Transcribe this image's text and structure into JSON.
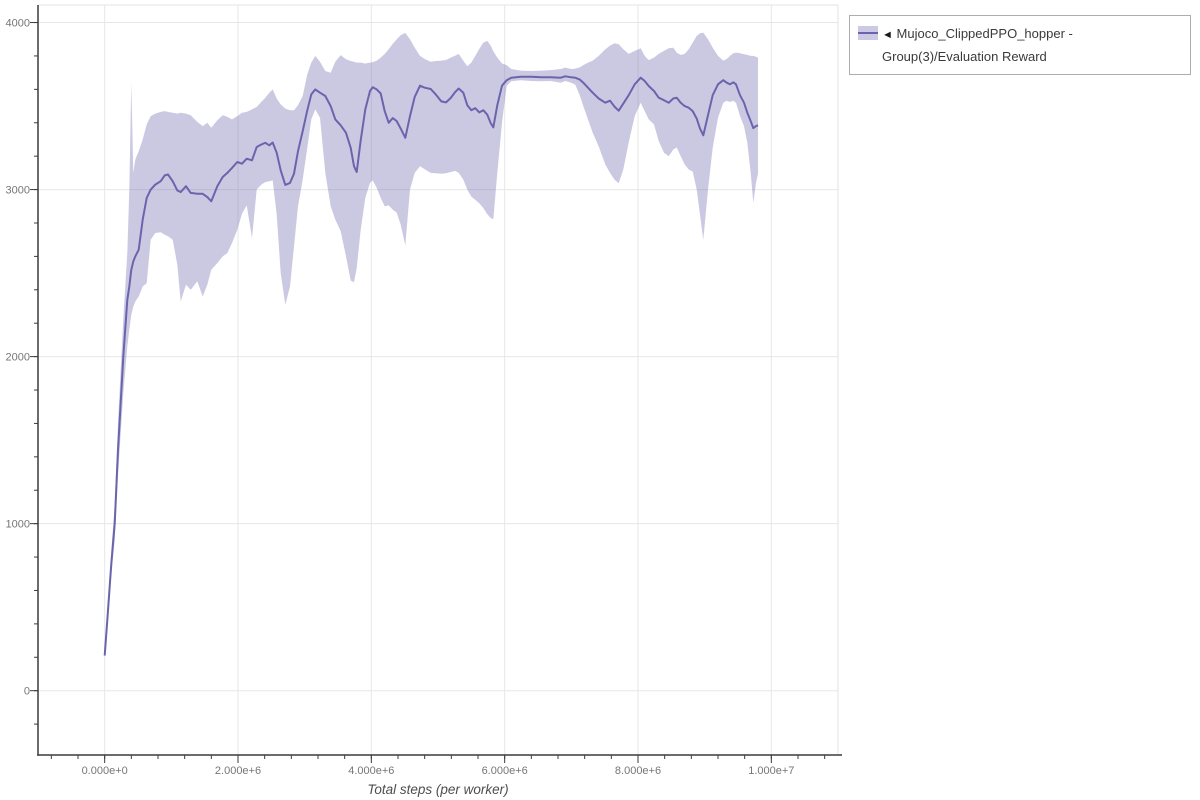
{
  "legend": {
    "arrow": "◄",
    "label": "Mujoco_ClippedPPO_hopper - Group(3)/Evaluation Reward"
  },
  "colors": {
    "line": "#6a64ad",
    "band_fill": "#6a64ad",
    "band_opacity": 0.35,
    "grid": "#e7e7e7",
    "plot_border": "#e3e3e3",
    "axis": "#3b3b3b",
    "tick_label": "#767676",
    "axis_title": "#4d4d4d",
    "legend_border": "#adadad"
  },
  "chart_data": {
    "type": "line",
    "title": "",
    "xlabel": "Total steps (per worker)",
    "ylabel": "",
    "grid": true,
    "legend_position": "top-right-outside",
    "xlim": [
      -1000000,
      11000000
    ],
    "ylim": [
      -385,
      4105
    ],
    "x_ticks": [
      0,
      2000000,
      4000000,
      6000000,
      8000000,
      10000000
    ],
    "x_tick_labels": [
      "0.000e+0",
      "2.000e+6",
      "4.000e+6",
      "6.000e+6",
      "8.000e+6",
      "1.000e+7"
    ],
    "x_minor_step": 400000,
    "y_ticks": [
      0,
      1000,
      2000,
      3000,
      4000
    ],
    "y_tick_labels": [
      "0",
      "1000",
      "2000",
      "3000",
      "4000"
    ],
    "y_minor_step": 200,
    "series": [
      {
        "name": "Mujoco_ClippedPPO_hopper - Group(3)/Evaluation Reward",
        "x": [
          0,
          50000,
          100000,
          150000,
          200000,
          280000,
          340000,
          370000,
          400000,
          430000,
          460000,
          510000,
          570000,
          630000,
          690000,
          760000,
          840000,
          900000,
          950000,
          1020000,
          1090000,
          1140000,
          1220000,
          1290000,
          1390000,
          1470000,
          1540000,
          1600000,
          1690000,
          1770000,
          1840000,
          1910000,
          1990000,
          2060000,
          2130000,
          2210000,
          2280000,
          2350000,
          2410000,
          2470000,
          2520000,
          2580000,
          2640000,
          2710000,
          2780000,
          2840000,
          2900000,
          2970000,
          3040000,
          3100000,
          3160000,
          3230000,
          3310000,
          3390000,
          3460000,
          3540000,
          3620000,
          3690000,
          3740000,
          3780000,
          3840000,
          3910000,
          3980000,
          4020000,
          4080000,
          4140000,
          4200000,
          4260000,
          4320000,
          4380000,
          4440000,
          4510000,
          4580000,
          4650000,
          4730000,
          4800000,
          4890000,
          4970000,
          5050000,
          5120000,
          5190000,
          5260000,
          5310000,
          5380000,
          5440000,
          5500000,
          5560000,
          5620000,
          5680000,
          5740000,
          5790000,
          5830000,
          5890000,
          5960000,
          6030000,
          6100000,
          6240000,
          6400000,
          6550000,
          6690000,
          6840000,
          6910000,
          7000000,
          7060000,
          7130000,
          7180000,
          7250000,
          7320000,
          7410000,
          7510000,
          7580000,
          7650000,
          7710000,
          7780000,
          7860000,
          7950000,
          8040000,
          8100000,
          8160000,
          8240000,
          8310000,
          8390000,
          8460000,
          8530000,
          8580000,
          8640000,
          8700000,
          8760000,
          8820000,
          8880000,
          8930000,
          8980000,
          9050000,
          9120000,
          9200000,
          9280000,
          9330000,
          9380000,
          9430000,
          9470000,
          9530000,
          9590000,
          9640000,
          9690000,
          9730000,
          9770000,
          9800000
        ],
        "mean": [
          210,
          480,
          760,
          1000,
          1440,
          2000,
          2340,
          2420,
          2520,
          2570,
          2600,
          2640,
          2820,
          2950,
          3000,
          3030,
          3050,
          3085,
          3090,
          3050,
          2995,
          2985,
          3020,
          2980,
          2975,
          2975,
          2955,
          2930,
          3020,
          3075,
          3100,
          3130,
          3165,
          3155,
          3185,
          3175,
          3255,
          3270,
          3280,
          3265,
          3282,
          3220,
          3115,
          3028,
          3040,
          3095,
          3230,
          3350,
          3475,
          3570,
          3600,
          3580,
          3560,
          3500,
          3420,
          3385,
          3340,
          3250,
          3140,
          3105,
          3295,
          3480,
          3590,
          3612,
          3600,
          3575,
          3470,
          3400,
          3428,
          3410,
          3365,
          3310,
          3440,
          3555,
          3622,
          3610,
          3602,
          3568,
          3528,
          3522,
          3548,
          3585,
          3605,
          3580,
          3505,
          3475,
          3487,
          3462,
          3475,
          3448,
          3398,
          3372,
          3505,
          3622,
          3655,
          3670,
          3676,
          3675,
          3672,
          3673,
          3670,
          3678,
          3672,
          3670,
          3658,
          3640,
          3610,
          3580,
          3545,
          3520,
          3532,
          3495,
          3472,
          3515,
          3565,
          3630,
          3670,
          3650,
          3620,
          3590,
          3550,
          3535,
          3520,
          3545,
          3550,
          3520,
          3500,
          3490,
          3470,
          3425,
          3365,
          3325,
          3445,
          3565,
          3630,
          3655,
          3640,
          3630,
          3642,
          3630,
          3565,
          3520,
          3460,
          3410,
          3368,
          3380,
          3385
        ],
        "lower": [
          210,
          440,
          690,
          900,
          1290,
          1780,
          2060,
          2160,
          2250,
          2300,
          2330,
          2360,
          2420,
          2440,
          2700,
          2740,
          2745,
          2730,
          2720,
          2700,
          2550,
          2330,
          2430,
          2400,
          2450,
          2360,
          2430,
          2520,
          2560,
          2600,
          2620,
          2680,
          2760,
          2855,
          2905,
          2710,
          3000,
          3030,
          3045,
          3050,
          3055,
          2850,
          2500,
          2310,
          2420,
          2660,
          2900,
          3060,
          3250,
          3420,
          3480,
          3430,
          3100,
          2900,
          2820,
          2750,
          2600,
          2455,
          2445,
          2530,
          2760,
          2950,
          3040,
          3055,
          3010,
          2950,
          2900,
          2905,
          2880,
          2862,
          2790,
          2665,
          3000,
          3100,
          3140,
          3122,
          3100,
          3098,
          3095,
          3098,
          3105,
          3112,
          3100,
          3060,
          3000,
          2958,
          2938,
          2918,
          2890,
          2852,
          2830,
          2822,
          3100,
          3400,
          3620,
          3648,
          3655,
          3650,
          3648,
          3650,
          3640,
          3650,
          3640,
          3628,
          3560,
          3500,
          3420,
          3340,
          3258,
          3150,
          3100,
          3058,
          3038,
          3120,
          3282,
          3440,
          3520,
          3470,
          3420,
          3390,
          3290,
          3220,
          3200,
          3240,
          3252,
          3200,
          3150,
          3120,
          3108,
          3000,
          2850,
          2700,
          3000,
          3250,
          3430,
          3520,
          3532,
          3524,
          3532,
          3520,
          3440,
          3380,
          3280,
          3100,
          2920,
          3040,
          3095
        ],
        "upper": [
          210,
          520,
          840,
          1110,
          1600,
          2230,
          2620,
          3000,
          3640,
          3100,
          3180,
          3230,
          3300,
          3390,
          3440,
          3455,
          3465,
          3470,
          3465,
          3460,
          3455,
          3460,
          3455,
          3445,
          3405,
          3380,
          3400,
          3370,
          3415,
          3445,
          3435,
          3420,
          3440,
          3460,
          3465,
          3480,
          3495,
          3525,
          3550,
          3580,
          3600,
          3545,
          3510,
          3485,
          3475,
          3475,
          3505,
          3560,
          3690,
          3760,
          3800,
          3765,
          3710,
          3700,
          3765,
          3805,
          3780,
          3770,
          3765,
          3760,
          3760,
          3755,
          3760,
          3762,
          3772,
          3790,
          3812,
          3840,
          3872,
          3900,
          3925,
          3938,
          3900,
          3850,
          3800,
          3782,
          3765,
          3770,
          3772,
          3776,
          3790,
          3802,
          3812,
          3772,
          3738,
          3760,
          3800,
          3842,
          3880,
          3890,
          3862,
          3828,
          3790,
          3755,
          3745,
          3722,
          3712,
          3710,
          3712,
          3715,
          3722,
          3730,
          3722,
          3724,
          3732,
          3745,
          3760,
          3772,
          3800,
          3840,
          3862,
          3876,
          3870,
          3840,
          3812,
          3830,
          3846,
          3800,
          3775,
          3790,
          3812,
          3830,
          3846,
          3850,
          3820,
          3806,
          3812,
          3840,
          3880,
          3920,
          3936,
          3940,
          3900,
          3850,
          3800,
          3772,
          3782,
          3800,
          3816,
          3820,
          3816,
          3810,
          3806,
          3800,
          3800,
          3795,
          3790
        ]
      }
    ]
  }
}
